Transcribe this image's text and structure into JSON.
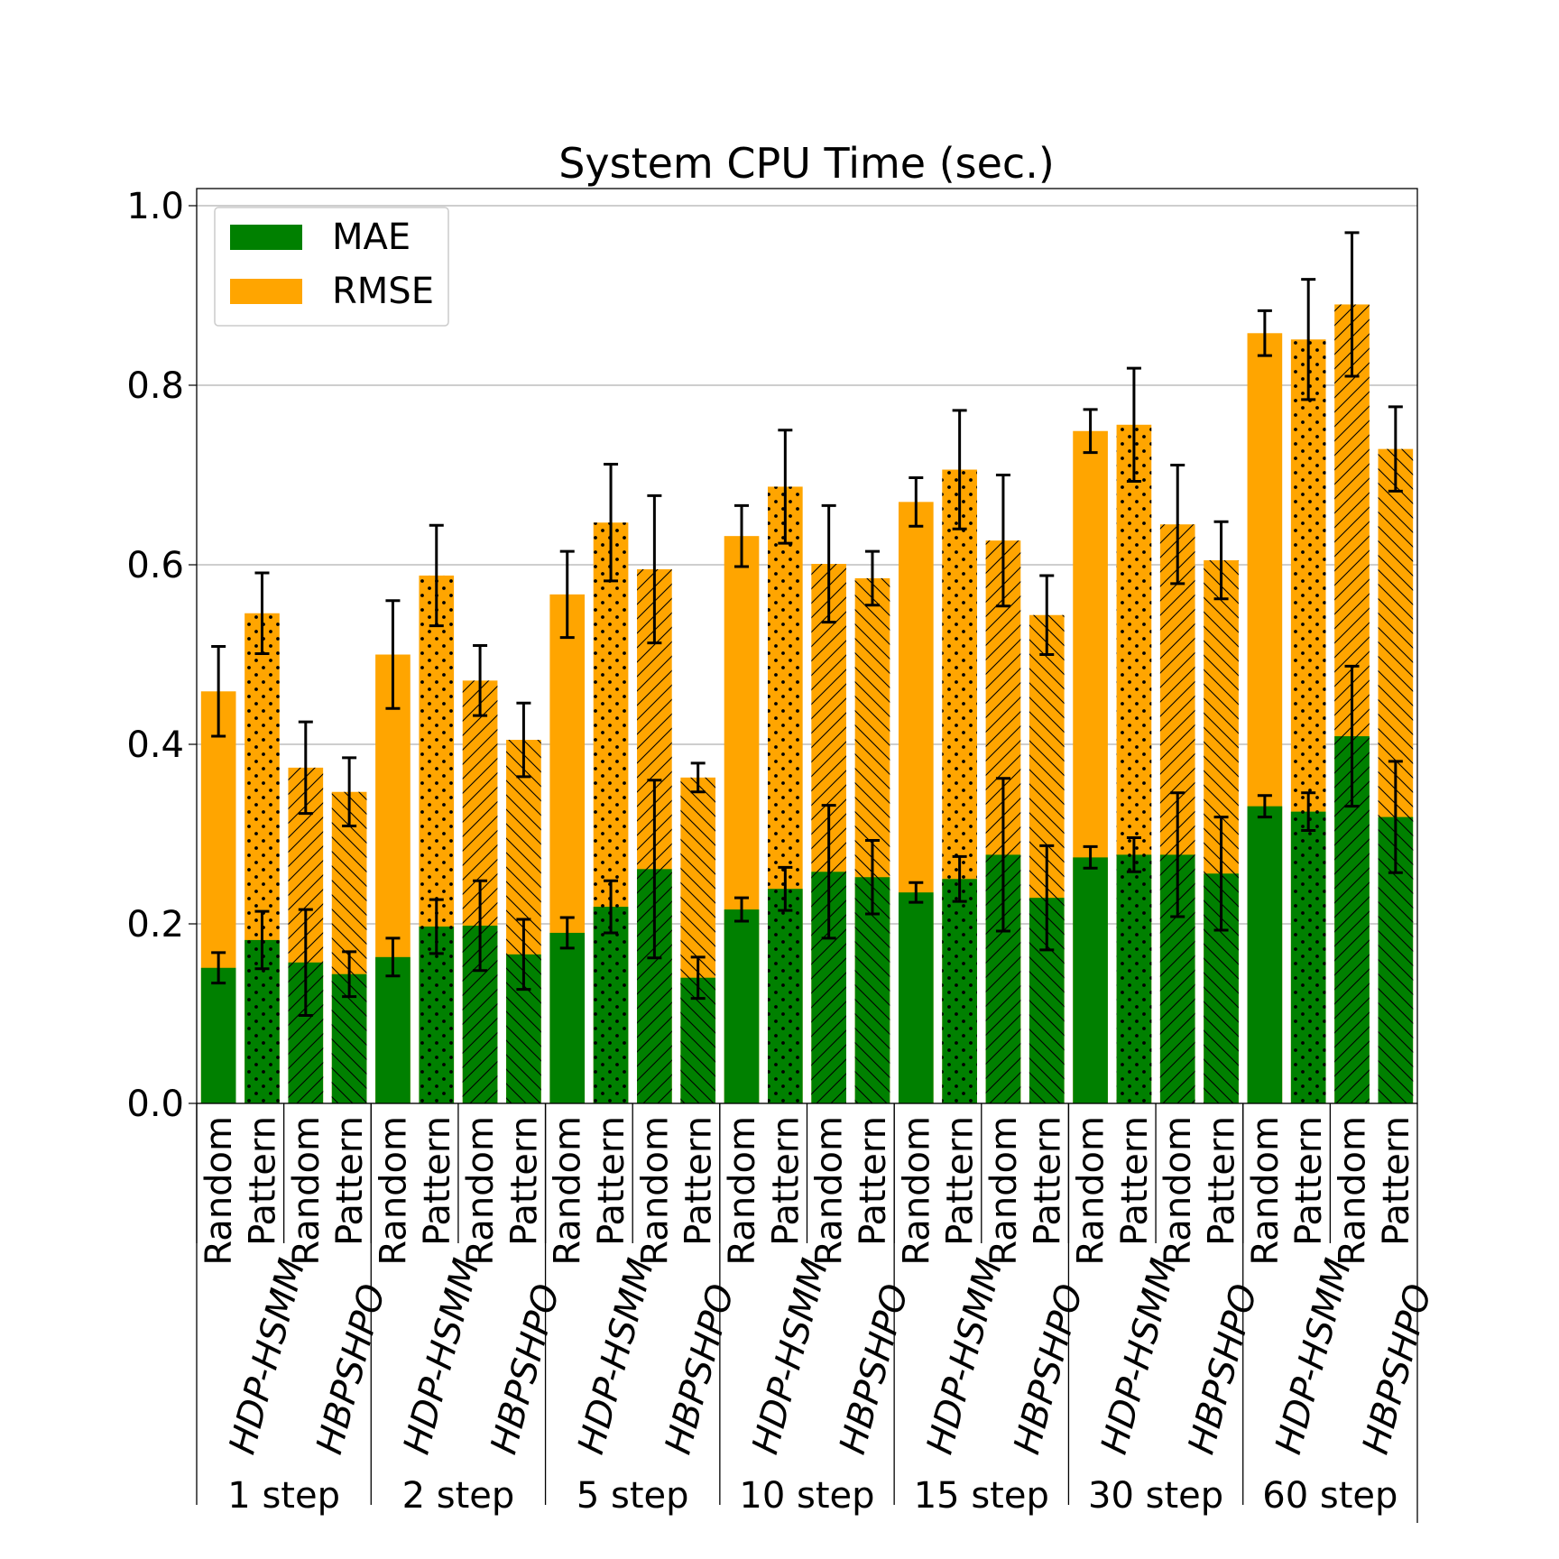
{
  "chart_data": {
    "type": "bar",
    "title": "System CPU Time (sec.)",
    "xlabel": "",
    "ylabel": "",
    "ylim": [
      0,
      1.02
    ],
    "yticks": [
      "0.0",
      "0.2",
      "0.4",
      "0.6",
      "0.8",
      "1.0"
    ],
    "ytick_values": [
      0.0,
      0.2,
      0.4,
      0.6,
      0.8,
      1.0
    ],
    "grid": "horizontal",
    "legend_position": "top-left",
    "stacking": "overlaid",
    "series": [
      {
        "name": "MAE",
        "color": "#008000"
      },
      {
        "name": "RMSE",
        "color": "#FFA500"
      }
    ],
    "groups": [
      "1 step",
      "2 step",
      "5 step",
      "10 step",
      "15 step",
      "30 step",
      "60 step"
    ],
    "methods": [
      "HDP-HSMM",
      "HBPSHPO"
    ],
    "modes": [
      "Random",
      "Pattern"
    ],
    "bars": [
      {
        "group": "1 step",
        "method": "HDP-HSMM",
        "mode": "Random",
        "mae": 0.151,
        "mae_err": 0.017,
        "rmse": 0.459,
        "rmse_err": 0.05
      },
      {
        "group": "1 step",
        "method": "HDP-HSMM",
        "mode": "Pattern",
        "mae": 0.182,
        "mae_err": 0.032,
        "rmse": 0.546,
        "rmse_err": 0.045
      },
      {
        "group": "1 step",
        "method": "HBPSHPO",
        "mode": "Random",
        "mae": 0.157,
        "mae_err": 0.059,
        "rmse": 0.374,
        "rmse_err": 0.051
      },
      {
        "group": "1 step",
        "method": "HBPSHPO",
        "mode": "Pattern",
        "mae": 0.144,
        "mae_err": 0.025,
        "rmse": 0.347,
        "rmse_err": 0.038
      },
      {
        "group": "2 step",
        "method": "HDP-HSMM",
        "mode": "Random",
        "mae": 0.163,
        "mae_err": 0.021,
        "rmse": 0.5,
        "rmse_err": 0.06
      },
      {
        "group": "2 step",
        "method": "HDP-HSMM",
        "mode": "Pattern",
        "mae": 0.197,
        "mae_err": 0.03,
        "rmse": 0.588,
        "rmse_err": 0.056
      },
      {
        "group": "2 step",
        "method": "HBPSHPO",
        "mode": "Random",
        "mae": 0.198,
        "mae_err": 0.05,
        "rmse": 0.471,
        "rmse_err": 0.039
      },
      {
        "group": "2 step",
        "method": "HBPSHPO",
        "mode": "Pattern",
        "mae": 0.166,
        "mae_err": 0.039,
        "rmse": 0.405,
        "rmse_err": 0.041
      },
      {
        "group": "5 step",
        "method": "HDP-HSMM",
        "mode": "Random",
        "mae": 0.19,
        "mae_err": 0.017,
        "rmse": 0.567,
        "rmse_err": 0.048
      },
      {
        "group": "5 step",
        "method": "HDP-HSMM",
        "mode": "Pattern",
        "mae": 0.219,
        "mae_err": 0.029,
        "rmse": 0.647,
        "rmse_err": 0.065
      },
      {
        "group": "5 step",
        "method": "HBPSHPO",
        "mode": "Random",
        "mae": 0.261,
        "mae_err": 0.099,
        "rmse": 0.595,
        "rmse_err": 0.082
      },
      {
        "group": "5 step",
        "method": "HBPSHPO",
        "mode": "Pattern",
        "mae": 0.14,
        "mae_err": 0.023,
        "rmse": 0.363,
        "rmse_err": 0.016
      },
      {
        "group": "10 step",
        "method": "HDP-HSMM",
        "mode": "Random",
        "mae": 0.216,
        "mae_err": 0.013,
        "rmse": 0.632,
        "rmse_err": 0.034
      },
      {
        "group": "10 step",
        "method": "HDP-HSMM",
        "mode": "Pattern",
        "mae": 0.239,
        "mae_err": 0.024,
        "rmse": 0.687,
        "rmse_err": 0.063
      },
      {
        "group": "10 step",
        "method": "HBPSHPO",
        "mode": "Random",
        "mae": 0.258,
        "mae_err": 0.074,
        "rmse": 0.601,
        "rmse_err": 0.065
      },
      {
        "group": "10 step",
        "method": "HBPSHPO",
        "mode": "Pattern",
        "mae": 0.252,
        "mae_err": 0.041,
        "rmse": 0.585,
        "rmse_err": 0.03
      },
      {
        "group": "15 step",
        "method": "HDP-HSMM",
        "mode": "Random",
        "mae": 0.235,
        "mae_err": 0.011,
        "rmse": 0.67,
        "rmse_err": 0.027
      },
      {
        "group": "15 step",
        "method": "HDP-HSMM",
        "mode": "Pattern",
        "mae": 0.25,
        "mae_err": 0.025,
        "rmse": 0.706,
        "rmse_err": 0.066
      },
      {
        "group": "15 step",
        "method": "HBPSHPO",
        "mode": "Random",
        "mae": 0.277,
        "mae_err": 0.085,
        "rmse": 0.627,
        "rmse_err": 0.073
      },
      {
        "group": "15 step",
        "method": "HBPSHPO",
        "mode": "Pattern",
        "mae": 0.229,
        "mae_err": 0.058,
        "rmse": 0.544,
        "rmse_err": 0.044
      },
      {
        "group": "30 step",
        "method": "HDP-HSMM",
        "mode": "Random",
        "mae": 0.274,
        "mae_err": 0.012,
        "rmse": 0.749,
        "rmse_err": 0.024
      },
      {
        "group": "30 step",
        "method": "HDP-HSMM",
        "mode": "Pattern",
        "mae": 0.277,
        "mae_err": 0.019,
        "rmse": 0.756,
        "rmse_err": 0.063
      },
      {
        "group": "30 step",
        "method": "HBPSHPO",
        "mode": "Random",
        "mae": 0.277,
        "mae_err": 0.069,
        "rmse": 0.645,
        "rmse_err": 0.066
      },
      {
        "group": "30 step",
        "method": "HBPSHPO",
        "mode": "Pattern",
        "mae": 0.256,
        "mae_err": 0.063,
        "rmse": 0.605,
        "rmse_err": 0.043
      },
      {
        "group": "60 step",
        "method": "HDP-HSMM",
        "mode": "Random",
        "mae": 0.331,
        "mae_err": 0.012,
        "rmse": 0.858,
        "rmse_err": 0.025
      },
      {
        "group": "60 step",
        "method": "HDP-HSMM",
        "mode": "Pattern",
        "mae": 0.325,
        "mae_err": 0.021,
        "rmse": 0.851,
        "rmse_err": 0.067
      },
      {
        "group": "60 step",
        "method": "HBPSHPO",
        "mode": "Random",
        "mae": 0.409,
        "mae_err": 0.078,
        "rmse": 0.89,
        "rmse_err": 0.08
      },
      {
        "group": "60 step",
        "method": "HBPSHPO",
        "mode": "Pattern",
        "mae": 0.319,
        "mae_err": 0.062,
        "rmse": 0.729,
        "rmse_err": 0.047
      }
    ]
  }
}
